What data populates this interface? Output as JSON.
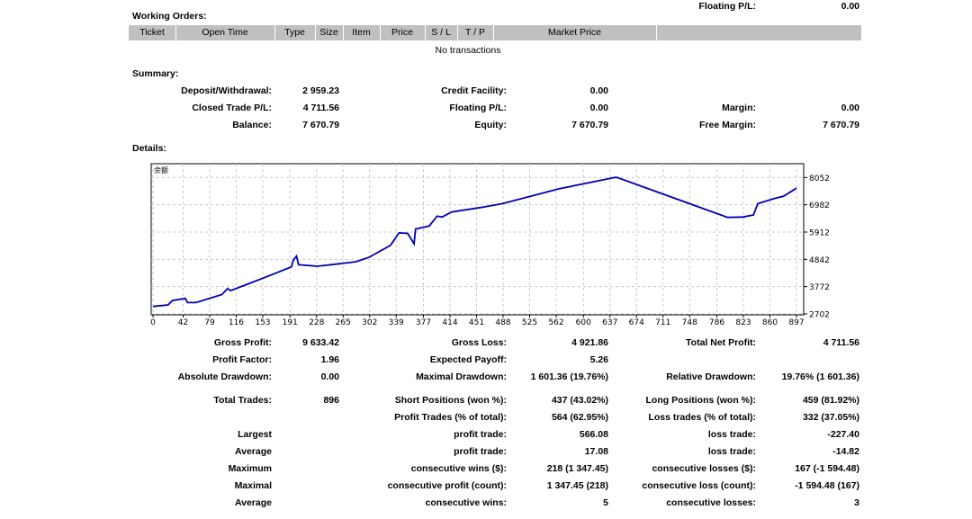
{
  "top_partial": {
    "label": "Floating P/L:",
    "value": "0.00"
  },
  "working_orders": {
    "title": "Working Orders:",
    "columns": [
      "Ticket",
      "Open Time",
      "Type",
      "Size",
      "Item",
      "Price",
      "S / L",
      "T / P",
      "Market Price",
      ""
    ],
    "empty_text": "No transactions"
  },
  "summary": {
    "title": "Summary:",
    "rows": [
      [
        {
          "label": "Deposit/Withdrawal:",
          "value": "2 959.23"
        },
        {
          "label": "Credit Facility:",
          "value": "0.00"
        },
        {
          "label": "",
          "value": ""
        }
      ],
      [
        {
          "label": "Closed Trade P/L:",
          "value": "4 711.56"
        },
        {
          "label": "Floating P/L:",
          "value": "0.00"
        },
        {
          "label": "Margin:",
          "value": "0.00"
        }
      ],
      [
        {
          "label": "Balance:",
          "value": "7 670.79"
        },
        {
          "label": "Equity:",
          "value": "7 670.79"
        },
        {
          "label": "Free Margin:",
          "value": "7 670.79"
        }
      ]
    ]
  },
  "details": {
    "title": "Details:",
    "rows": [
      [
        {
          "label": "Gross Profit:",
          "value": "9 633.42"
        },
        {
          "label": "Gross Loss:",
          "value": "4 921.86"
        },
        {
          "label": "Total Net Profit:",
          "value": "4 711.56"
        }
      ],
      [
        {
          "label": "Profit Factor:",
          "value": "1.96"
        },
        {
          "label": "Expected Payoff:",
          "value": "5.26"
        },
        {
          "label": "",
          "value": ""
        }
      ],
      [
        {
          "label": "Absolute Drawdown:",
          "value": "0.00"
        },
        {
          "label": "Maximal Drawdown:",
          "value": "1 601.36 (19.76%)"
        },
        {
          "label": "Relative Drawdown:",
          "value": "19.76% (1 601.36)"
        }
      ],
      [
        {
          "label": "Total Trades:",
          "value": "896"
        },
        {
          "label": "Short Positions (won %):",
          "value": "437 (43.02%)"
        },
        {
          "label": "Long Positions (won %):",
          "value": "459 (81.92%)"
        }
      ],
      [
        {
          "label": "",
          "value": ""
        },
        {
          "label": "Profit Trades (% of total):",
          "value": "564 (62.95%)"
        },
        {
          "label": "Loss trades (% of total):",
          "value": "332 (37.05%)"
        }
      ],
      [
        {
          "label": "Largest",
          "value": ""
        },
        {
          "label": "profit trade:",
          "value": "566.08"
        },
        {
          "label": "loss trade:",
          "value": "-227.40"
        }
      ],
      [
        {
          "label": "Average",
          "value": ""
        },
        {
          "label": "profit trade:",
          "value": "17.08"
        },
        {
          "label": "loss trade:",
          "value": "-14.82"
        }
      ],
      [
        {
          "label": "Maximum",
          "value": ""
        },
        {
          "label": "consecutive wins ($):",
          "value": "218 (1 347.45)"
        },
        {
          "label": "consecutive losses ($):",
          "value": "167 (-1 594.48)"
        }
      ],
      [
        {
          "label": "Maximal",
          "value": ""
        },
        {
          "label": "consecutive profit (count):",
          "value": "1 347.45 (218)"
        },
        {
          "label": "consecutive loss (count):",
          "value": "-1 594.48 (167)"
        }
      ],
      [
        {
          "label": "Average",
          "value": ""
        },
        {
          "label": "consecutive wins:",
          "value": "5"
        },
        {
          "label": "consecutive losses:",
          "value": "3"
        }
      ]
    ]
  },
  "chart_data": {
    "type": "line",
    "title": "余额",
    "line_color": "#0000b4",
    "grid": true,
    "x_ticks": [
      0,
      42,
      79,
      116,
      153,
      191,
      228,
      265,
      302,
      339,
      377,
      414,
      451,
      488,
      525,
      562,
      600,
      637,
      674,
      711,
      748,
      786,
      823,
      860,
      897
    ],
    "y_ticks": [
      8052,
      6982,
      5912,
      4842,
      3772,
      2702
    ],
    "xlim": [
      0,
      897
    ],
    "ylim": [
      2702,
      8052
    ],
    "points": [
      [
        0,
        2995
      ],
      [
        21,
        3053
      ],
      [
        27,
        3228
      ],
      [
        45,
        3310
      ],
      [
        48,
        3147
      ],
      [
        60,
        3147
      ],
      [
        96,
        3462
      ],
      [
        104,
        3696
      ],
      [
        108,
        3614
      ],
      [
        132,
        3871
      ],
      [
        169,
        4280
      ],
      [
        193,
        4548
      ],
      [
        196,
        4828
      ],
      [
        200,
        4968
      ],
      [
        203,
        4630
      ],
      [
        229,
        4572
      ],
      [
        259,
        4665
      ],
      [
        283,
        4747
      ],
      [
        301,
        4922
      ],
      [
        331,
        5389
      ],
      [
        343,
        5880
      ],
      [
        355,
        5857
      ],
      [
        364,
        5448
      ],
      [
        366,
        6032
      ],
      [
        385,
        6149
      ],
      [
        396,
        6534
      ],
      [
        403,
        6499
      ],
      [
        416,
        6698
      ],
      [
        457,
        6873
      ],
      [
        487,
        7025
      ],
      [
        566,
        7609
      ],
      [
        644,
        8052
      ],
      [
        647,
        8052
      ],
      [
        801,
        6487
      ],
      [
        822,
        6499
      ],
      [
        837,
        6581
      ],
      [
        843,
        7025
      ],
      [
        867,
        7235
      ],
      [
        879,
        7317
      ],
      [
        897,
        7632
      ]
    ]
  }
}
